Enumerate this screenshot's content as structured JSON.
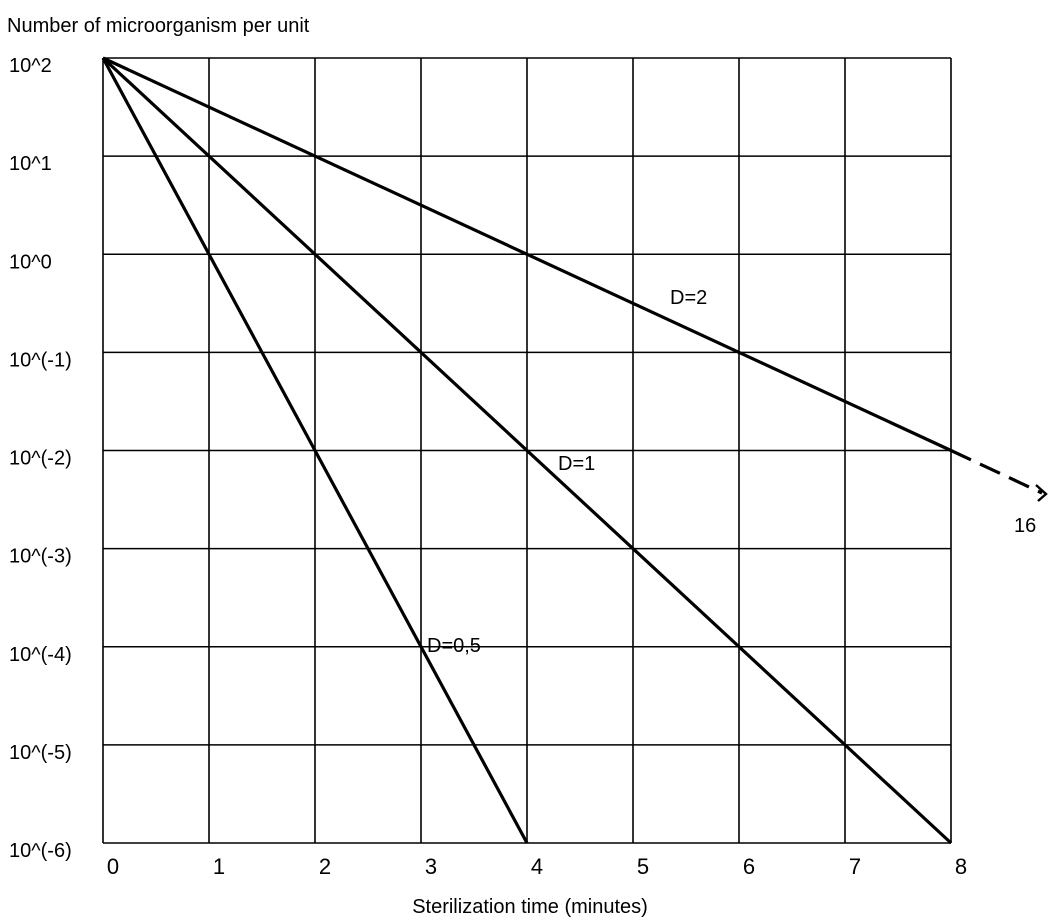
{
  "chart_data": {
    "type": "line",
    "title": "",
    "ylabel": "Number of microorganism per unit",
    "xlabel": "Sterilization time (minutes)",
    "y_scale": "log10",
    "xlim": [
      0,
      8
    ],
    "ylim_exponent": [
      -6,
      2
    ],
    "x_ticks": [
      0,
      1,
      2,
      3,
      4,
      5,
      6,
      7,
      8
    ],
    "x_tick_labels": [
      "0",
      "1",
      "2",
      "3",
      "4",
      "5",
      "6",
      "7",
      "8"
    ],
    "y_ticks_exponent": [
      2,
      1,
      0,
      -1,
      -2,
      -3,
      -4,
      -5,
      -6
    ],
    "y_tick_labels": [
      "10^2",
      "10^1",
      "10^0",
      "10^(-1)",
      "10^(-2)",
      "10^(-3)",
      "10^(-4)",
      "10^(-5)",
      "10^(-6)"
    ],
    "grid": true,
    "series": [
      {
        "name": "D=0,5",
        "x": [
          0,
          4
        ],
        "y_exponent": [
          2,
          -6
        ]
      },
      {
        "name": "D=1",
        "x": [
          0,
          8
        ],
        "y_exponent": [
          2,
          -6
        ]
      },
      {
        "name": "D=2",
        "x": [
          0,
          8
        ],
        "y_exponent": [
          2,
          -2
        ]
      }
    ],
    "extension": {
      "from": [
        8,
        -2
      ],
      "toward": [
        9,
        -2.45
      ],
      "label": "16",
      "style": "dashed"
    }
  }
}
